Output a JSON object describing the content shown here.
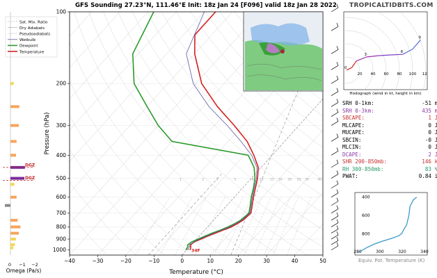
{
  "header": {
    "title": "GFS Sounding 27.23°N, 111.46°E Init: 18z Jan 24 [F096] valid 18z Jan 28 2022",
    "brand": "TROPICALTIDBITS.COM"
  },
  "legend": {
    "items": [
      {
        "label": "Sat. Mix. Ratio",
        "color": "#bbbbbb",
        "dash": "2,2"
      },
      {
        "label": "Dry Adiabats",
        "color": "#bbbbbb",
        "dash": ""
      },
      {
        "label": "Pseudoadiabats",
        "color": "#dddddd",
        "dash": ""
      },
      {
        "label": "Wetbulb",
        "color": "#5a5aa0",
        "dash": ""
      },
      {
        "label": "Dewpoint",
        "color": "#2a9a2a",
        "dash": ""
      },
      {
        "label": "Temperature",
        "color": "#d42020",
        "dash": ""
      }
    ]
  },
  "chart_data": [
    {
      "type": "line",
      "name": "skew-t",
      "xlabel": "Temperature (°C)",
      "ylabel": "Pressure (hPa)",
      "xlim": [
        -40,
        50
      ],
      "ylim": [
        1050,
        100
      ],
      "y_scale": "log",
      "x_ticks": [
        -40,
        -30,
        -20,
        -10,
        0,
        10,
        20,
        30,
        40,
        50
      ],
      "y_ticks": [
        100,
        200,
        300,
        400,
        500,
        600,
        700,
        800,
        900,
        1000
      ],
      "mixing_ratio_labels": [
        "1",
        "2",
        "3",
        "5",
        "8",
        "10",
        "13",
        "16",
        "20",
        "25",
        "30",
        "40"
      ],
      "dgz_label": "DGZ",
      "surface_temp_label": "34F",
      "omega_xlabel": "Omega (Pa/s)",
      "omega_ticks": [
        "0",
        "-1",
        "-2"
      ],
      "series": [
        {
          "name": "Temperature",
          "color": "#d42020",
          "points": [
            [
              1000,
              1.2
            ],
            [
              975,
              0.6
            ],
            [
              950,
              -0.3
            ],
            [
              925,
              0.1
            ],
            [
              900,
              1.5
            ],
            [
              875,
              3.0
            ],
            [
              850,
              4.8
            ],
            [
              825,
              6.5
            ],
            [
              800,
              8.5
            ],
            [
              775,
              9.5
            ],
            [
              750,
              10.5
            ],
            [
              700,
              11.0
            ],
            [
              650,
              9.0
            ],
            [
              600,
              6.8
            ],
            [
              550,
              4.6
            ],
            [
              500,
              2.2
            ],
            [
              450,
              -1.0
            ],
            [
              400,
              -6.5
            ],
            [
              350,
              -13.3
            ],
            [
              300,
              -23.0
            ],
            [
              250,
              -35.0
            ],
            [
              200,
              -48.0
            ],
            [
              150,
              -60.0
            ],
            [
              125,
              -66.0
            ],
            [
              100,
              -66.0
            ]
          ]
        },
        {
          "name": "Dewpoint",
          "color": "#2a9a2a",
          "points": [
            [
              1000,
              -0.3
            ],
            [
              975,
              -0.6
            ],
            [
              950,
              -1.3
            ],
            [
              925,
              -0.8
            ],
            [
              900,
              0.5
            ],
            [
              875,
              2.0
            ],
            [
              850,
              3.6
            ],
            [
              825,
              5.6
            ],
            [
              800,
              7.3
            ],
            [
              775,
              8.6
            ],
            [
              750,
              9.6
            ],
            [
              700,
              10.3
            ],
            [
              650,
              8.3
            ],
            [
              600,
              6.0
            ],
            [
              550,
              3.9
            ],
            [
              500,
              1.3
            ],
            [
              450,
              -2.5
            ],
            [
              400,
              -8.5
            ],
            [
              350,
              -40.0
            ],
            [
              300,
              -50.0
            ],
            [
              250,
              -60.0
            ],
            [
              200,
              -72.0
            ],
            [
              150,
              -82.0
            ],
            [
              100,
              -88.0
            ]
          ]
        },
        {
          "name": "Wetbulb",
          "color": "#5a5aa0",
          "points": [
            [
              1000,
              0.5
            ],
            [
              950,
              -0.7
            ],
            [
              900,
              1.0
            ],
            [
              850,
              4.2
            ],
            [
              800,
              7.9
            ],
            [
              750,
              10.0
            ],
            [
              700,
              10.6
            ],
            [
              650,
              8.6
            ],
            [
              600,
              6.4
            ],
            [
              500,
              1.8
            ],
            [
              450,
              -1.5
            ],
            [
              400,
              -7.3
            ],
            [
              350,
              -15.5
            ],
            [
              300,
              -25.5
            ],
            [
              250,
              -38.0
            ],
            [
              200,
              -51.0
            ],
            [
              150,
              -63.0
            ],
            [
              100,
              -70.0
            ]
          ]
        }
      ],
      "omega_bars": [
        {
          "p": 980,
          "omega": 0.5,
          "color": "#f2d65a"
        },
        {
          "p": 950,
          "omega": 0.8,
          "color": "#f2d65a"
        },
        {
          "p": 900,
          "omega": 1.0,
          "color": "#f2d65a"
        },
        {
          "p": 850,
          "omega": 1.5,
          "color": "#f5a45e"
        },
        {
          "p": 800,
          "omega": 1.8,
          "color": "#f5a45e"
        },
        {
          "p": 750,
          "omega": 1.3,
          "color": "#f5a45e"
        },
        {
          "p": 650,
          "omega": -1.0,
          "color": "#888888"
        },
        {
          "p": 600,
          "omega": 1.1,
          "color": "#f5a45e"
        },
        {
          "p": 530,
          "omega": 0.7,
          "color": "#f2d65a"
        },
        {
          "p": 500,
          "omega": 2.5,
          "color": "#7c2c9c"
        },
        {
          "p": 450,
          "omega": 2.6,
          "color": "#7c2c9c"
        },
        {
          "p": 400,
          "omega": 1.0,
          "color": "#f5a45e"
        },
        {
          "p": 350,
          "omega": 1.1,
          "color": "#f5a45e"
        },
        {
          "p": 300,
          "omega": 1.5,
          "color": "#f5a45e"
        },
        {
          "p": 250,
          "omega": 1.6,
          "color": "#f5a45e"
        },
        {
          "p": 200,
          "omega": 0.6,
          "color": "#f2d65a"
        }
      ]
    },
    {
      "type": "line",
      "name": "hodograph",
      "xlabel": "Hodograph (wind in kt, height in km)",
      "x_ticks": [
        20,
        40,
        60,
        80,
        100,
        120
      ],
      "series": [
        {
          "name": "",
          "points": [
            [
              0,
              0
            ],
            [
              8,
              4
            ],
            [
              15,
              14
            ],
            [
              30,
              20
            ],
            [
              48,
              22
            ],
            [
              65,
              23
            ],
            [
              85,
              24
            ],
            [
              100,
              32
            ],
            [
              112,
              46
            ]
          ]
        }
      ],
      "height_labels": [
        "0",
        "3",
        "6",
        "9"
      ]
    },
    {
      "type": "line",
      "name": "inset",
      "x_ticks": [
        280,
        300,
        320,
        340
      ],
      "y_ticks": [
        400,
        600,
        800
      ],
      "series": [
        {
          "name": "",
          "points": [
            [
              281,
              1000
            ],
            [
              288,
              950
            ],
            [
              295,
              910
            ],
            [
              302,
              880
            ],
            [
              310,
              850
            ],
            [
              317,
              820
            ],
            [
              320,
              790
            ],
            [
              321,
              760
            ],
            [
              324,
              700
            ],
            [
              326,
              600
            ],
            [
              327,
              500
            ],
            [
              330,
              430
            ],
            [
              333,
              400
            ]
          ]
        }
      ],
      "caption": "Equiv. Pot. Temperature (K)"
    }
  ],
  "indices": [
    {
      "key": "SRH 0-1km:",
      "val": "-51",
      "unit": "m²s⁻²",
      "color": "#000000"
    },
    {
      "key": "SRH 0-3km:",
      "val": "435",
      "unit": "m²s⁻²",
      "color": "#8b3aa6"
    },
    {
      "key": "SBCAPE:",
      "val": "1",
      "unit": "J/kg",
      "color": "#c83030"
    },
    {
      "key": "MLCAPE:",
      "val": "0",
      "unit": "J/kg",
      "color": "#000000"
    },
    {
      "key": "MUCAPE:",
      "val": "0",
      "unit": "J/kg",
      "color": "#000000"
    },
    {
      "key": "SBCIN:",
      "val": "-0",
      "unit": "J/kg",
      "color": "#000000"
    },
    {
      "key": "MLCIN:",
      "val": "0",
      "unit": "J/kg",
      "color": "#000000"
    },
    {
      "key": "DCAPE:",
      "val": "2",
      "unit": "J/kg",
      "color": "#8b3aa6"
    },
    {
      "key": "SHR 200-850mb:",
      "val": "146",
      "unit": "kt",
      "color": "#c83030"
    },
    {
      "key": "RH 300-850mb:",
      "val": "83",
      "unit": "%",
      "color": "#2a9a6a"
    },
    {
      "key": "PWAT:",
      "val": "0.84",
      "unit": "in",
      "color": "#000000"
    }
  ],
  "wind_barbs": {
    "pressures": [
      100,
      120,
      150,
      175,
      200,
      225,
      250,
      275,
      300,
      350,
      400,
      450,
      500,
      550,
      600,
      650,
      700,
      750,
      800,
      850,
      900,
      950,
      1000
    ]
  }
}
